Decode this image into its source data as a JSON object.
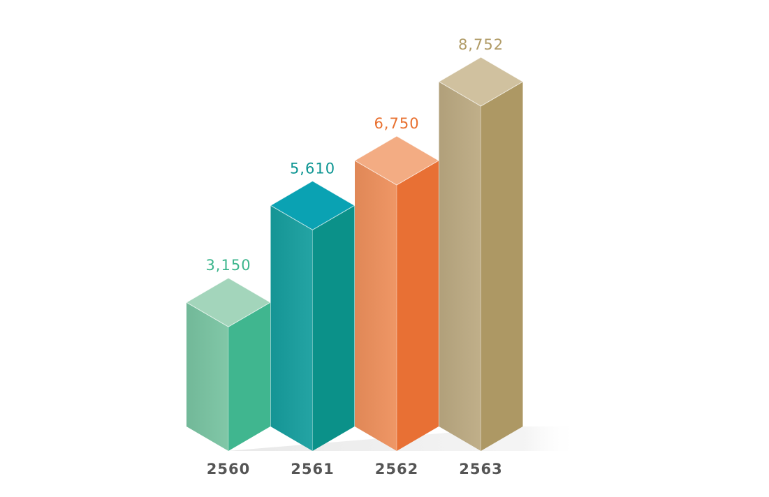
{
  "chart_data": {
    "type": "bar",
    "categories": [
      "2560",
      "2561",
      "2562",
      "2563"
    ],
    "values": [
      3150,
      5610,
      6750,
      8752
    ],
    "value_labels": [
      "3,150",
      "5,610",
      "6,750",
      "8,752"
    ],
    "title": "",
    "xlabel": "",
    "ylabel": "",
    "ylim": [
      0,
      8752
    ],
    "grid": false,
    "legend": "none",
    "style": "3d-isometric",
    "colors": [
      {
        "top": "#a3d5bb",
        "left": "#79c4a2",
        "right": "#40b68f",
        "label": "#3bb58c"
      },
      {
        "top": "#0aa2b3",
        "left": "#169e9e",
        "right": "#0b9189",
        "label": "#0c9592"
      },
      {
        "top": "#f3ac83",
        "left": "#ee905c",
        "right": "#e87034",
        "label": "#e8702f"
      },
      {
        "top": "#d0c19f",
        "left": "#bcaa82",
        "right": "#ad9864",
        "label": "#b09b66"
      }
    ],
    "category_label_color": "#555555"
  }
}
